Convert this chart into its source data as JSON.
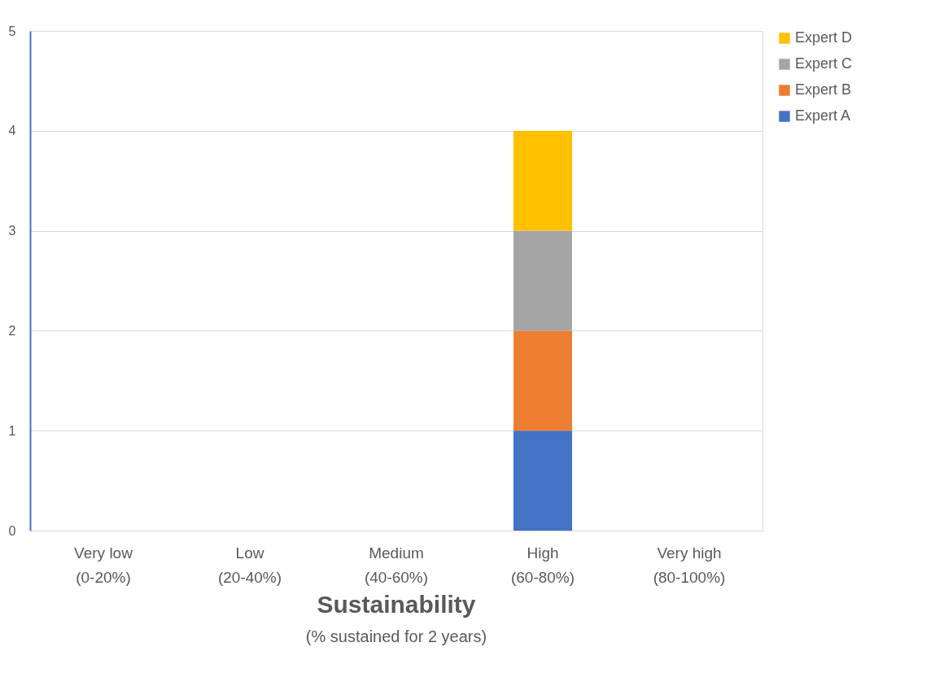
{
  "chart_data": {
    "type": "bar",
    "stacked": true,
    "xlabel": "Sustainability",
    "annotations": [
      "(% sustained for 2 years)"
    ],
    "categories": [
      "Very low\n(0-20%)",
      "Low\n(20-40%)",
      "Medium\n(40-60%)",
      "High\n(60-80%)",
      "Very high\n(80-100%)"
    ],
    "series": [
      {
        "name": "Expert A",
        "color": "#4472c4",
        "values": [
          0,
          0,
          0,
          1,
          0
        ]
      },
      {
        "name": "Expert B",
        "color": "#ed7d31",
        "values": [
          0,
          0,
          0,
          1,
          0
        ]
      },
      {
        "name": "Expert C",
        "color": "#a5a5a5",
        "values": [
          0,
          0,
          0,
          1,
          0
        ]
      },
      {
        "name": "Expert D",
        "color": "#ffc000",
        "values": [
          0,
          0,
          0,
          1,
          0
        ]
      }
    ],
    "ylim": [
      0,
      5
    ],
    "yticks": [
      0,
      1,
      2,
      3,
      4,
      5
    ],
    "grid": "y",
    "legend": "right"
  }
}
